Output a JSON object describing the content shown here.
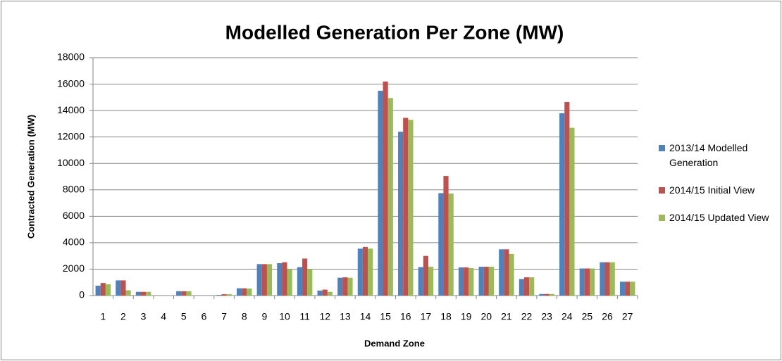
{
  "chart_data": {
    "type": "bar",
    "title": "Modelled Generation Per Zone (MW)",
    "x_label": "Demand Zone",
    "y_label": "Contracted Generation (MW)",
    "categories": [
      "1",
      "2",
      "3",
      "4",
      "5",
      "6",
      "7",
      "8",
      "9",
      "10",
      "11",
      "12",
      "13",
      "14",
      "15",
      "16",
      "17",
      "18",
      "19",
      "20",
      "21",
      "22",
      "23",
      "24",
      "25",
      "26",
      "27"
    ],
    "series": [
      {
        "name": "2013/14 Modelled Generation",
        "color": "#4f81bd",
        "values": [
          750,
          1150,
          280,
          0,
          330,
          0,
          50,
          550,
          2380,
          2450,
          2150,
          380,
          1350,
          3550,
          15500,
          12400,
          2150,
          7750,
          2130,
          2180,
          3500,
          1250,
          120,
          13800,
          2050,
          2520,
          1050
        ]
      },
      {
        "name": "2014/15 Initial View",
        "color": "#c0504d",
        "values": [
          950,
          1150,
          280,
          0,
          330,
          0,
          100,
          550,
          2380,
          2520,
          2800,
          450,
          1380,
          3680,
          16200,
          13450,
          3000,
          9050,
          2130,
          2180,
          3500,
          1380,
          120,
          14650,
          2050,
          2520,
          1050
        ]
      },
      {
        "name": "2014/15 Updated View",
        "color": "#9bbb59",
        "values": [
          850,
          400,
          280,
          0,
          330,
          0,
          100,
          530,
          2380,
          2000,
          2000,
          280,
          1350,
          3550,
          14950,
          13300,
          2180,
          7720,
          2080,
          2180,
          3150,
          1380,
          120,
          12700,
          2050,
          2520,
          1050
        ]
      }
    ],
    "ylim": [
      0,
      18000
    ],
    "yticks": [
      0,
      2000,
      4000,
      6000,
      8000,
      10000,
      12000,
      14000,
      16000,
      18000
    ],
    "grid": true,
    "legend": "right"
  }
}
